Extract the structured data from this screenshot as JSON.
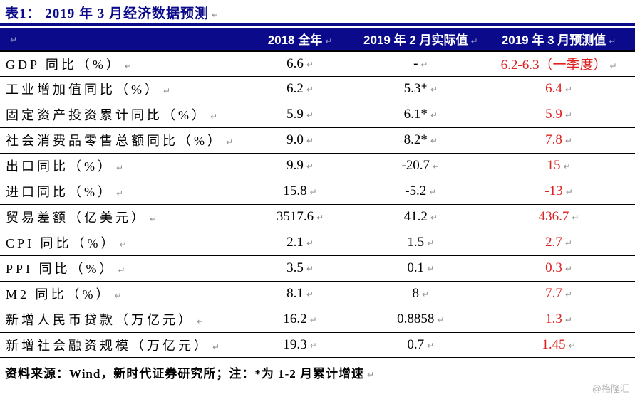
{
  "title": "表1： 2019 年 3 月经济数据预测",
  "marks": {
    "pilcrow": "↵"
  },
  "colors": {
    "navy": "#0a0a8a",
    "forecast_red": "#dd2222",
    "watermark_gray": "#b5b5b5"
  },
  "table": {
    "headers": {
      "col2": "2018 全年",
      "col3": "2019 年 2 月实际值",
      "col4": "2019 年 3 月预测值"
    },
    "rows": [
      {
        "label": "GDP 同比（%）",
        "y2018": "6.6",
        "feb2019": "-",
        "mar2019": "6.2-6.3（一季度）"
      },
      {
        "label": "工业增加值同比（%）",
        "y2018": "6.2",
        "feb2019": "5.3*",
        "mar2019": "6.4"
      },
      {
        "label": "固定资产投资累计同比（%）",
        "y2018": "5.9",
        "feb2019": "6.1*",
        "mar2019": "5.9"
      },
      {
        "label": "社会消费品零售总额同比（%）",
        "y2018": "9.0",
        "feb2019": "8.2*",
        "mar2019": "7.8"
      },
      {
        "label": "出口同比（%）",
        "y2018": "9.9",
        "feb2019": "-20.7",
        "mar2019": "15"
      },
      {
        "label": "进口同比（%）",
        "y2018": "15.8",
        "feb2019": "-5.2",
        "mar2019": "-13"
      },
      {
        "label": "贸易差额（亿美元）",
        "y2018": "3517.6",
        "feb2019": "41.2",
        "mar2019": "436.7"
      },
      {
        "label": "CPI 同比（%）",
        "y2018": "2.1",
        "feb2019": "1.5",
        "mar2019": "2.7"
      },
      {
        "label": "PPI 同比（%）",
        "y2018": "3.5",
        "feb2019": "0.1",
        "mar2019": "0.3"
      },
      {
        "label": "M2 同比（%）",
        "y2018": "8.1",
        "feb2019": "8",
        "mar2019": "7.7"
      },
      {
        "label": "新增人民币贷款（万亿元）",
        "y2018": "16.2",
        "feb2019": "0.8858",
        "mar2019": "1.3"
      },
      {
        "label": "新增社会融资规模（万亿元）",
        "y2018": "19.3",
        "feb2019": "0.7",
        "mar2019": "1.45"
      }
    ]
  },
  "footer": {
    "source_note": "资料来源：Wind，新时代证券研究所；注：*为 1-2 月累计增速",
    "watermark": "@格隆汇"
  }
}
